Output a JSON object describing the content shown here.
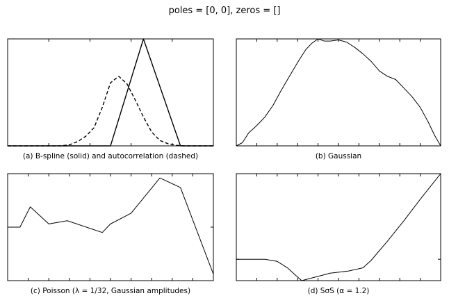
{
  "figure": {
    "suptitle": "poles = [0, 0], zeros = []"
  },
  "chart_data": [
    {
      "id": "a",
      "type": "line",
      "caption": "(a) B-spline (solid) and autocorrelation (dashed)",
      "xlim": [
        0,
        1
      ],
      "ylim": [
        0,
        1
      ],
      "xticks": [
        0.2,
        0.4,
        0.6,
        0.8
      ],
      "yticks": [],
      "series": [
        {
          "style": "solid",
          "width": 1.4,
          "x": [
            0,
            0.5,
            0.66,
            0.84,
            1.0
          ],
          "y": [
            0,
            0,
            1.0,
            0,
            0
          ]
        },
        {
          "style": "dashed",
          "width": 1.4,
          "x": [
            0,
            0.26,
            0.3,
            0.34,
            0.38,
            0.42,
            0.46,
            0.5,
            0.54,
            0.58,
            0.62,
            0.66,
            0.7,
            0.74,
            0.78,
            0.82,
            0.86,
            0.9,
            1.0
          ],
          "y": [
            0,
            0,
            0.01,
            0.04,
            0.09,
            0.17,
            0.36,
            0.59,
            0.65,
            0.58,
            0.43,
            0.27,
            0.13,
            0.05,
            0.02,
            0.005,
            0,
            0,
            0
          ]
        }
      ]
    },
    {
      "id": "b",
      "type": "line",
      "caption": "(b) Gaussian",
      "xlim": [
        0,
        1
      ],
      "ylim": [
        0,
        1
      ],
      "xticks": [
        0.1,
        0.2,
        0.3,
        0.4,
        0.5,
        0.6,
        0.7,
        0.8,
        0.9
      ],
      "yticks": [],
      "series": [
        {
          "style": "solid",
          "width": 1,
          "x": [
            0,
            0.03,
            0.06,
            0.1,
            0.14,
            0.18,
            0.22,
            0.26,
            0.3,
            0.34,
            0.37,
            0.4,
            0.43,
            0.46,
            0.5,
            0.54,
            0.58,
            0.62,
            0.66,
            0.7,
            0.74,
            0.78,
            0.82,
            0.86,
            0.9,
            0.94,
            0.97,
            1.0
          ],
          "y": [
            0.0,
            0.03,
            0.12,
            0.19,
            0.27,
            0.38,
            0.52,
            0.65,
            0.78,
            0.9,
            0.96,
            1.0,
            0.98,
            0.98,
            0.99,
            0.97,
            0.92,
            0.86,
            0.79,
            0.7,
            0.65,
            0.62,
            0.54,
            0.46,
            0.36,
            0.22,
            0.1,
            0.0
          ]
        }
      ]
    },
    {
      "id": "c",
      "type": "line",
      "caption": "(c) Poisson (λ = 1/32, Gaussian amplitudes)",
      "xlim": [
        0,
        1
      ],
      "ylim": [
        0,
        1
      ],
      "xticks": [
        0.1,
        0.2,
        0.3,
        0.4,
        0.5,
        0.6,
        0.7,
        0.8,
        0.9
      ],
      "yticks": [
        0.5
      ],
      "series": [
        {
          "style": "solid",
          "width": 1,
          "x": [
            0,
            0.06,
            0.11,
            0.2,
            0.29,
            0.46,
            0.5,
            0.6,
            0.74,
            0.84,
            1.0
          ],
          "y": [
            0.5,
            0.5,
            0.69,
            0.53,
            0.56,
            0.45,
            0.53,
            0.63,
            0.96,
            0.87,
            0.06
          ]
        }
      ]
    },
    {
      "id": "d",
      "type": "line",
      "caption": "(d) SσS (α = 1.2)",
      "xlim": [
        0,
        1
      ],
      "ylim": [
        0,
        1
      ],
      "xticks": [
        0.1,
        0.2,
        0.3,
        0.4,
        0.5,
        0.6,
        0.7,
        0.8,
        0.9
      ],
      "yticks": [
        0.2
      ],
      "series": [
        {
          "style": "solid",
          "width": 1,
          "x": [
            0,
            0.06,
            0.14,
            0.2,
            0.25,
            0.29,
            0.32,
            0.38,
            0.46,
            0.55,
            0.62,
            0.66,
            0.74,
            0.82,
            0.9,
            0.95,
            1.0
          ],
          "y": [
            0.2,
            0.2,
            0.2,
            0.18,
            0.12,
            0.05,
            0.0,
            0.03,
            0.07,
            0.09,
            0.12,
            0.19,
            0.37,
            0.56,
            0.76,
            0.88,
            1.0
          ]
        }
      ]
    }
  ]
}
